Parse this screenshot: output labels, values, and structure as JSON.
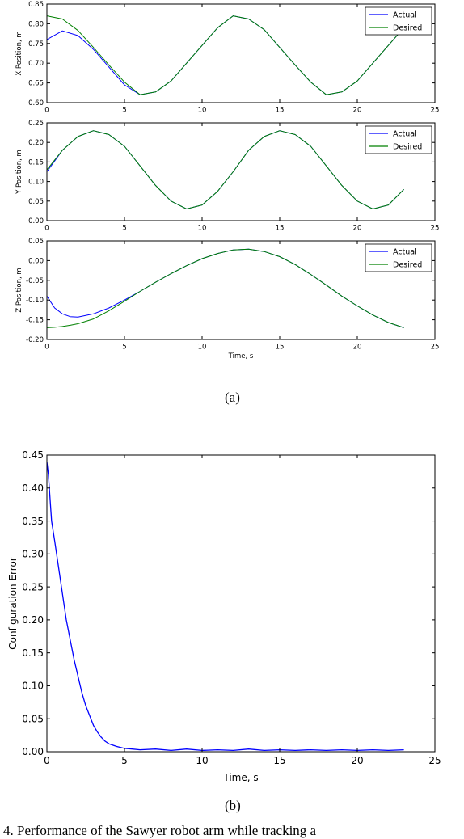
{
  "captions": {
    "a": "(a)",
    "b": "(b)",
    "bottom": "4. Performance of the Sawyer robot arm while tracking a"
  },
  "colors": {
    "actual": "#0000ff",
    "desired": "#008000",
    "axes": "#000000",
    "background": "#ffffff"
  },
  "chart_data": [
    {
      "type": "line",
      "title": "",
      "xlabel": "",
      "ylabel": "X Position, m",
      "xlim": [
        0,
        25
      ],
      "ylim": [
        0.6,
        0.85
      ],
      "xticks": [
        "0",
        "5",
        "10",
        "15",
        "20",
        "25"
      ],
      "yticks": [
        "0.60",
        "0.65",
        "0.70",
        "0.75",
        "0.80",
        "0.85"
      ],
      "grid": false,
      "legend": "top-right",
      "x": [
        0,
        1,
        2,
        3,
        4,
        5,
        6,
        7,
        8,
        9,
        10,
        11,
        12,
        13,
        14,
        15,
        16,
        17,
        18,
        19,
        20,
        21,
        22,
        23
      ],
      "series": [
        {
          "name": "Actual",
          "color": "#0000ff",
          "values": [
            0.76,
            0.782,
            0.77,
            0.735,
            0.69,
            0.645,
            0.62,
            0.627,
            0.655,
            0.7,
            0.745,
            0.79,
            0.82,
            0.812,
            0.785,
            0.74,
            0.695,
            0.652,
            0.62,
            0.627,
            0.655,
            0.7,
            0.745,
            0.79
          ]
        },
        {
          "name": "Desired",
          "color": "#008000",
          "values": [
            0.82,
            0.812,
            0.783,
            0.74,
            0.695,
            0.652,
            0.62,
            0.627,
            0.655,
            0.7,
            0.745,
            0.79,
            0.82,
            0.812,
            0.785,
            0.74,
            0.695,
            0.652,
            0.62,
            0.627,
            0.655,
            0.7,
            0.745,
            0.79
          ]
        }
      ]
    },
    {
      "type": "line",
      "title": "",
      "xlabel": "",
      "ylabel": "Y Position, m",
      "xlim": [
        0,
        25
      ],
      "ylim": [
        0.0,
        0.25
      ],
      "xticks": [
        "0",
        "5",
        "10",
        "15",
        "20",
        "25"
      ],
      "yticks": [
        "0.00",
        "0.05",
        "0.10",
        "0.15",
        "0.20",
        "0.25"
      ],
      "grid": false,
      "legend": "top-right",
      "x": [
        0,
        1,
        2,
        3,
        4,
        5,
        6,
        7,
        8,
        9,
        10,
        11,
        12,
        13,
        14,
        15,
        16,
        17,
        18,
        19,
        20,
        21,
        22,
        23
      ],
      "series": [
        {
          "name": "Actual",
          "color": "#0000ff",
          "values": [
            0.125,
            0.18,
            0.215,
            0.23,
            0.22,
            0.19,
            0.14,
            0.09,
            0.05,
            0.03,
            0.04,
            0.075,
            0.125,
            0.18,
            0.215,
            0.23,
            0.22,
            0.19,
            0.14,
            0.09,
            0.05,
            0.03,
            0.04,
            0.08
          ]
        },
        {
          "name": "Desired",
          "color": "#008000",
          "values": [
            0.13,
            0.18,
            0.215,
            0.23,
            0.22,
            0.19,
            0.14,
            0.09,
            0.05,
            0.03,
            0.04,
            0.075,
            0.125,
            0.18,
            0.215,
            0.23,
            0.22,
            0.19,
            0.14,
            0.09,
            0.05,
            0.03,
            0.04,
            0.08
          ]
        }
      ]
    },
    {
      "type": "line",
      "title": "",
      "xlabel": "Time, s",
      "ylabel": "Z Position, m",
      "xlim": [
        0,
        25
      ],
      "ylim": [
        -0.2,
        0.05
      ],
      "xticks": [
        "0",
        "5",
        "10",
        "15",
        "20",
        "25"
      ],
      "yticks": [
        "-0.20",
        "-0.15",
        "-0.10",
        "-0.05",
        "0.00",
        "0.05"
      ],
      "grid": false,
      "legend": "top-right",
      "x": [
        0,
        0.5,
        1,
        1.5,
        2,
        3,
        4,
        5,
        6,
        7,
        8,
        9,
        10,
        11,
        12,
        13,
        14,
        15,
        16,
        17,
        18,
        19,
        20,
        21,
        22,
        23
      ],
      "series": [
        {
          "name": "Actual",
          "color": "#0000ff",
          "values": [
            -0.09,
            -0.12,
            -0.135,
            -0.142,
            -0.143,
            -0.135,
            -0.12,
            -0.1,
            -0.078,
            -0.055,
            -0.033,
            -0.013,
            0.005,
            0.018,
            0.027,
            0.029,
            0.023,
            0.01,
            -0.01,
            -0.035,
            -0.062,
            -0.09,
            -0.115,
            -0.138,
            -0.157,
            -0.17
          ]
        },
        {
          "name": "Desired",
          "color": "#008000",
          "values": [
            -0.17,
            -0.169,
            -0.167,
            -0.164,
            -0.16,
            -0.148,
            -0.127,
            -0.103,
            -0.078,
            -0.055,
            -0.033,
            -0.013,
            0.005,
            0.018,
            0.027,
            0.029,
            0.023,
            0.01,
            -0.01,
            -0.035,
            -0.062,
            -0.09,
            -0.115,
            -0.138,
            -0.157,
            -0.17
          ]
        }
      ]
    },
    {
      "type": "line",
      "title": "",
      "xlabel": "Time, s",
      "ylabel": "Configuration Error",
      "xlim": [
        0,
        25
      ],
      "ylim": [
        0,
        0.45
      ],
      "xticks": [
        "0",
        "5",
        "10",
        "15",
        "20",
        "25"
      ],
      "yticks": [
        "0.00",
        "0.05",
        "0.10",
        "0.15",
        "0.20",
        "0.25",
        "0.30",
        "0.35",
        "0.40",
        "0.45"
      ],
      "grid": false,
      "legend": "none",
      "x": [
        0,
        0.1,
        0.3,
        0.5,
        0.75,
        1,
        1.25,
        1.5,
        1.75,
        2,
        2.25,
        2.5,
        2.75,
        3,
        3.25,
        3.5,
        3.75,
        4,
        4.5,
        5,
        5.5,
        6,
        7,
        8,
        9,
        10,
        11,
        12,
        13,
        14,
        15,
        16,
        17,
        18,
        19,
        20,
        21,
        22,
        23
      ],
      "series": [
        {
          "name": "",
          "color": "#0000ff",
          "values": [
            0.44,
            0.42,
            0.35,
            0.32,
            0.28,
            0.24,
            0.2,
            0.17,
            0.14,
            0.115,
            0.09,
            0.07,
            0.055,
            0.04,
            0.03,
            0.022,
            0.016,
            0.012,
            0.008,
            0.005,
            0.004,
            0.003,
            0.004,
            0.002,
            0.004,
            0.002,
            0.003,
            0.002,
            0.004,
            0.002,
            0.003,
            0.002,
            0.003,
            0.002,
            0.003,
            0.002,
            0.003,
            0.002,
            0.003
          ]
        }
      ]
    }
  ]
}
